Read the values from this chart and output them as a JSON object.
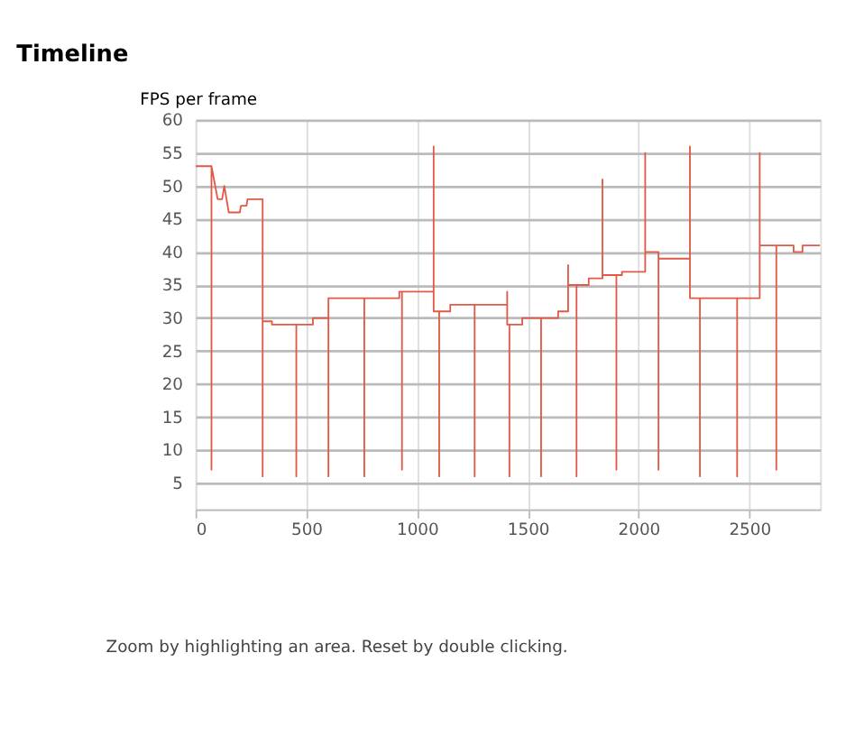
{
  "chart_data": {
    "type": "line",
    "title": "Timeline",
    "ylabel": "FPS per frame",
    "x": [
      0,
      72,
      72,
      72,
      100,
      120,
      130,
      150,
      200,
      205,
      230,
      235,
      303,
      303,
      303,
      345,
      345,
      455,
      455,
      455,
      530,
      530,
      600,
      600,
      600,
      762,
      762,
      762,
      920,
      920,
      932,
      932,
      932,
      1075,
      1075,
      1075,
      1100,
      1100,
      1100,
      1150,
      1150,
      1260,
      1260,
      1260,
      1407,
      1407,
      1407,
      1417,
      1417,
      1417,
      1475,
      1475,
      1560,
      1560,
      1560,
      1637,
      1637,
      1682,
      1682,
      1682,
      1720,
      1720,
      1720,
      1775,
      1775,
      1837,
      1837,
      1837,
      1900,
      1900,
      1900,
      1925,
      1925,
      2030,
      2030,
      2030,
      2090,
      2090,
      2090,
      2232,
      2232,
      2232,
      2277,
      2277,
      2277,
      2445,
      2445,
      2445,
      2547,
      2547,
      2547,
      2622,
      2622,
      2622,
      2700,
      2700,
      2740,
      2740,
      2820
    ],
    "series": [
      {
        "color": "#e05a47",
        "values": [
          53,
          53,
          7,
          53,
          48,
          48,
          50,
          46,
          46,
          47,
          47,
          48,
          48,
          6,
          29.5,
          29.5,
          29,
          29,
          6,
          29,
          29,
          30,
          30,
          6,
          33,
          33,
          6,
          33,
          33,
          34,
          34,
          7,
          34,
          34,
          56,
          31,
          31,
          6,
          31,
          31,
          32,
          32,
          6,
          32,
          32,
          34,
          29,
          29,
          6,
          29,
          29,
          30,
          30,
          6,
          30,
          30,
          31,
          31,
          38,
          35,
          35,
          6,
          35,
          35,
          36,
          36,
          51,
          36.5,
          36.5,
          7,
          36.5,
          36.5,
          37,
          37,
          55,
          40,
          40,
          7,
          39,
          39,
          56,
          33,
          33,
          6,
          33,
          33,
          6,
          33,
          33,
          55,
          41,
          41,
          7,
          41,
          41,
          40,
          40,
          41,
          41
        ]
      }
    ],
    "xlim": [
      0,
      2820
    ],
    "xticks": [
      0,
      500,
      1000,
      1500,
      2000,
      2500
    ],
    "ylim": [
      1,
      60
    ],
    "yticks": [
      5,
      10,
      15,
      20,
      25,
      30,
      35,
      40,
      45,
      50,
      55,
      60
    ],
    "grid": true,
    "annotations": [
      "Zoom by highlighting an area. Reset by double clicking."
    ]
  }
}
